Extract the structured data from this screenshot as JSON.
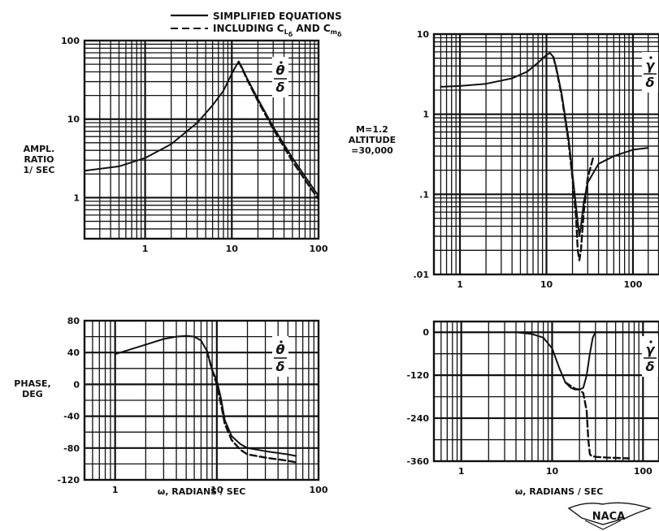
{
  "legend": {
    "solid_label": "SIMPLIFIED  EQUATIONS",
    "dashed_label": "INCLUDING  C",
    "dashed_sub1": "L",
    "dashed_and": " AND  C",
    "dashed_sub2": "m",
    "sub_delta": "δ",
    "sub_dot": "·"
  },
  "annotation": {
    "mach": "M=1.2",
    "altitude_1": "ALTITUDE",
    "altitude_2": "=30,000"
  },
  "ylabels": {
    "amp": [
      "AMPL.",
      "RATIO",
      "1/ SEC"
    ],
    "phase": [
      "PHASE,",
      "DEG"
    ]
  },
  "xlabel": "ω,  RADIANS / SEC",
  "logo": "NACA",
  "colors": {
    "ink": "#111111",
    "paper": "#ffffff"
  },
  "chart_data": [
    {
      "id": "theta_amp",
      "type": "line",
      "x_scale": "log",
      "y_scale": "log",
      "xlim": [
        0.2,
        100
      ],
      "ylim": [
        0.3,
        100
      ],
      "xticks": [
        1,
        10,
        100
      ],
      "xtick_labels": [
        "1",
        "10",
        "100"
      ],
      "yticks": [
        1,
        10,
        100
      ],
      "ytick_labels": [
        "1",
        "10",
        "100"
      ],
      "grid": true,
      "curve_label": {
        "num": "θ",
        "den": "δ",
        "dot": true
      },
      "series": [
        {
          "name": "SIMPLIFIED EQUATIONS",
          "style": "solid",
          "x": [
            0.2,
            0.5,
            1,
            2,
            4,
            6,
            8,
            10,
            11,
            12,
            13,
            15,
            20,
            30,
            50,
            80,
            100
          ],
          "y": [
            2.2,
            2.5,
            3.2,
            4.8,
            9,
            15,
            23,
            38,
            46,
            54,
            46,
            33,
            18,
            8,
            3.2,
            1.5,
            1.05
          ]
        },
        {
          "name": "INCLUDING CLδ AND Cmδ",
          "style": "dashed",
          "x": [
            12,
            13,
            15,
            20,
            30,
            50,
            80,
            100
          ],
          "y": [
            54,
            45,
            32,
            17,
            7.5,
            2.9,
            1.35,
            0.95
          ]
        }
      ]
    },
    {
      "id": "gamma_amp",
      "type": "line",
      "x_scale": "log",
      "y_scale": "log",
      "xlim": [
        0.5,
        200
      ],
      "ylim": [
        0.01,
        10
      ],
      "xticks": [
        1,
        10,
        100
      ],
      "xtick_labels": [
        "1",
        "10",
        "100"
      ],
      "yticks": [
        0.01,
        0.1,
        1,
        10
      ],
      "ytick_labels": [
        ".01",
        ".1",
        "1",
        "10"
      ],
      "grid": true,
      "curve_label": {
        "num": "γ",
        "den": "δ",
        "dot": true
      },
      "series": [
        {
          "name": "SIMPLIFIED EQUATIONS",
          "style": "solid",
          "x": [
            0.6,
            1,
            2,
            4,
            6,
            8,
            10,
            11,
            12,
            13,
            15,
            18,
            21,
            23,
            24,
            25,
            27,
            30,
            40,
            60,
            100,
            150
          ],
          "y": [
            2.2,
            2.25,
            2.4,
            2.8,
            3.4,
            4.4,
            5.5,
            5.8,
            5.2,
            3.8,
            1.8,
            0.5,
            0.11,
            0.045,
            0.03,
            0.04,
            0.08,
            0.14,
            0.24,
            0.3,
            0.36,
            0.38
          ]
        },
        {
          "name": "INCLUDING CLδ AND Cmδ",
          "style": "dashed",
          "x": [
            12,
            13,
            15,
            18,
            20,
            22,
            23,
            24,
            25,
            27,
            30,
            35
          ],
          "y": [
            5.2,
            3.7,
            1.7,
            0.45,
            0.16,
            0.05,
            0.02,
            0.015,
            0.02,
            0.06,
            0.16,
            0.3
          ]
        }
      ]
    },
    {
      "id": "theta_phase",
      "type": "line",
      "x_scale": "log",
      "y_scale": "linear",
      "xlim": [
        0.5,
        100
      ],
      "ylim": [
        -120,
        80
      ],
      "xticks": [
        1,
        10,
        100
      ],
      "xtick_labels": [
        "1",
        "10",
        "100"
      ],
      "yticks": [
        80,
        40,
        0,
        -40,
        -80,
        -120
      ],
      "ytick_labels": [
        "80",
        "40",
        "0",
        "-40",
        "-80",
        "-120"
      ],
      "grid": true,
      "curve_label": {
        "num": "θ",
        "den": "δ",
        "dot": true
      },
      "series": [
        {
          "name": "SIMPLIFIED EQUATIONS",
          "style": "solid",
          "x": [
            1,
            2,
            3,
            4,
            5,
            6,
            7,
            8,
            9,
            10,
            11,
            12,
            14,
            17,
            20,
            30,
            50,
            60
          ],
          "y": [
            38,
            50,
            57,
            60,
            61,
            60,
            55,
            42,
            18,
            5,
            -18,
            -45,
            -65,
            -75,
            -80,
            -84,
            -88,
            -90
          ]
        },
        {
          "name": "INCLUDING CLδ AND Cmδ",
          "style": "dashed",
          "x": [
            8,
            9,
            10,
            11,
            12,
            14,
            17,
            20,
            30,
            50,
            60
          ],
          "y": [
            42,
            18,
            0,
            -25,
            -50,
            -70,
            -82,
            -88,
            -92,
            -96,
            -98
          ]
        }
      ]
    },
    {
      "id": "gamma_phase",
      "type": "line",
      "x_scale": "log",
      "y_scale": "linear",
      "xlim": [
        0.5,
        150
      ],
      "ylim": [
        -360,
        30
      ],
      "xticks": [
        1,
        10,
        100
      ],
      "xtick_labels": [
        "1",
        "10",
        "100"
      ],
      "yticks": [
        0,
        -120,
        -240,
        -360
      ],
      "ytick_labels": [
        "0",
        "-120",
        "-240",
        "-360"
      ],
      "grid": true,
      "curve_label": {
        "num": "γ",
        "den": "δ",
        "dot": true
      },
      "series": [
        {
          "name": "SIMPLIFIED EQUATIONS",
          "style": "solid",
          "x": [
            4,
            6,
            8,
            10,
            12,
            14,
            16,
            18,
            20,
            22,
            24,
            26,
            28,
            30,
            35,
            40,
            100
          ],
          "y": [
            0,
            -5,
            -15,
            -45,
            -100,
            -140,
            -155,
            -160,
            -160,
            -155,
            -120,
            -60,
            -15,
            0,
            0,
            0,
            0
          ]
        },
        {
          "name": "INCLUDING CLδ AND Cmδ",
          "style": "dashed",
          "x": [
            14,
            18,
            20,
            22,
            24,
            25,
            26,
            27,
            30,
            40,
            70
          ],
          "y": [
            -140,
            -158,
            -160,
            -170,
            -220,
            -300,
            -340,
            -345,
            -348,
            -350,
            -352
          ]
        }
      ]
    }
  ]
}
